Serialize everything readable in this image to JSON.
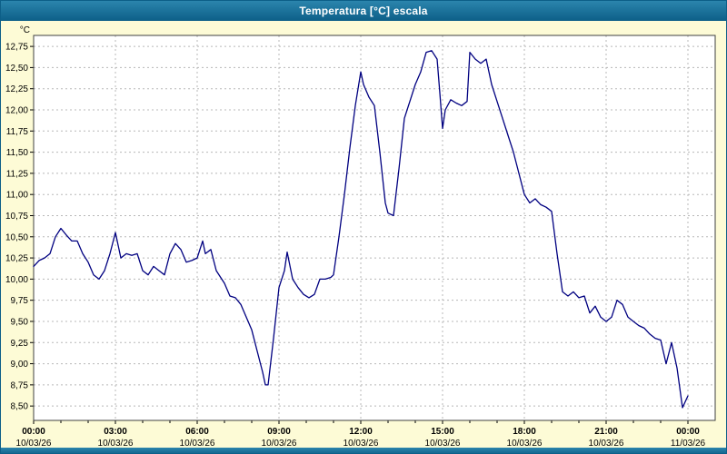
{
  "window": {
    "title": "Temperatura [°C] escala"
  },
  "colors": {
    "titlebar_bg_top": "#2b85ad",
    "titlebar_bg_bottom": "#0d5f88",
    "page_bg": "#fdfbd6",
    "plot_bg": "#ffffff",
    "grid": "#b8b8b8",
    "plot_border": "#404040",
    "line": "#000080",
    "axis_text": "#000000"
  },
  "chart_data": {
    "type": "line",
    "title": "Temperatura [°C] escala",
    "ylabel": "°C",
    "xlabel": "",
    "grid": true,
    "legend": "none",
    "ylim": [
      8.33,
      12.88
    ],
    "xlim": [
      0,
      25
    ],
    "y_ticks": [
      {
        "value": 12.75,
        "label": "12,75"
      },
      {
        "value": 12.5,
        "label": "12,50"
      },
      {
        "value": 12.25,
        "label": "12,25"
      },
      {
        "value": 12.0,
        "label": "12,00"
      },
      {
        "value": 11.75,
        "label": "11,75"
      },
      {
        "value": 11.5,
        "label": "11,50"
      },
      {
        "value": 11.25,
        "label": "11,25"
      },
      {
        "value": 11.0,
        "label": "11,00"
      },
      {
        "value": 10.75,
        "label": "10,75"
      },
      {
        "value": 10.5,
        "label": "10,50"
      },
      {
        "value": 10.25,
        "label": "10,25"
      },
      {
        "value": 10.0,
        "label": "10,00"
      },
      {
        "value": 9.75,
        "label": "9,75"
      },
      {
        "value": 9.5,
        "label": "9,50"
      },
      {
        "value": 9.25,
        "label": "9,25"
      },
      {
        "value": 9.0,
        "label": "9,00"
      },
      {
        "value": 8.75,
        "label": "8,75"
      },
      {
        "value": 8.5,
        "label": "8,50"
      }
    ],
    "x_ticks": [
      {
        "hour": 0,
        "time": "00:00",
        "date": "10/03/26"
      },
      {
        "hour": 3,
        "time": "03:00",
        "date": "10/03/26"
      },
      {
        "hour": 6,
        "time": "06:00",
        "date": "10/03/26"
      },
      {
        "hour": 9,
        "time": "09:00",
        "date": "10/03/26"
      },
      {
        "hour": 12,
        "time": "12:00",
        "date": "10/03/26"
      },
      {
        "hour": 15,
        "time": "15:00",
        "date": "10/03/26"
      },
      {
        "hour": 18,
        "time": "18:00",
        "date": "10/03/26"
      },
      {
        "hour": 21,
        "time": "21:00",
        "date": "10/03/26"
      },
      {
        "hour": 24,
        "time": "00:00",
        "date": "11/03/26"
      }
    ],
    "series": [
      {
        "name": "Temperatura",
        "color": "#000080",
        "points": [
          [
            0.0,
            10.15
          ],
          [
            0.2,
            10.22
          ],
          [
            0.4,
            10.25
          ],
          [
            0.6,
            10.3
          ],
          [
            0.8,
            10.5
          ],
          [
            1.0,
            10.6
          ],
          [
            1.2,
            10.52
          ],
          [
            1.4,
            10.45
          ],
          [
            1.6,
            10.45
          ],
          [
            1.8,
            10.3
          ],
          [
            2.0,
            10.2
          ],
          [
            2.2,
            10.05
          ],
          [
            2.4,
            10.0
          ],
          [
            2.6,
            10.1
          ],
          [
            2.8,
            10.3
          ],
          [
            3.0,
            10.55
          ],
          [
            3.1,
            10.4
          ],
          [
            3.2,
            10.25
          ],
          [
            3.4,
            10.3
          ],
          [
            3.6,
            10.28
          ],
          [
            3.8,
            10.3
          ],
          [
            4.0,
            10.1
          ],
          [
            4.2,
            10.05
          ],
          [
            4.4,
            10.15
          ],
          [
            4.6,
            10.1
          ],
          [
            4.8,
            10.05
          ],
          [
            5.0,
            10.3
          ],
          [
            5.2,
            10.42
          ],
          [
            5.4,
            10.35
          ],
          [
            5.6,
            10.2
          ],
          [
            5.8,
            10.22
          ],
          [
            6.0,
            10.25
          ],
          [
            6.2,
            10.45
          ],
          [
            6.3,
            10.3
          ],
          [
            6.5,
            10.35
          ],
          [
            6.7,
            10.1
          ],
          [
            7.0,
            9.95
          ],
          [
            7.2,
            9.8
          ],
          [
            7.4,
            9.78
          ],
          [
            7.6,
            9.7
          ],
          [
            7.8,
            9.55
          ],
          [
            8.0,
            9.4
          ],
          [
            8.2,
            9.15
          ],
          [
            8.4,
            8.9
          ],
          [
            8.5,
            8.75
          ],
          [
            8.6,
            8.75
          ],
          [
            8.8,
            9.3
          ],
          [
            9.0,
            9.9
          ],
          [
            9.2,
            10.1
          ],
          [
            9.3,
            10.32
          ],
          [
            9.5,
            10.0
          ],
          [
            9.7,
            9.9
          ],
          [
            9.9,
            9.82
          ],
          [
            10.1,
            9.78
          ],
          [
            10.3,
            9.82
          ],
          [
            10.5,
            10.0
          ],
          [
            10.7,
            10.0
          ],
          [
            10.9,
            10.02
          ],
          [
            11.0,
            10.05
          ],
          [
            11.2,
            10.5
          ],
          [
            11.4,
            11.0
          ],
          [
            11.6,
            11.55
          ],
          [
            11.8,
            12.05
          ],
          [
            12.0,
            12.45
          ],
          [
            12.1,
            12.3
          ],
          [
            12.3,
            12.15
          ],
          [
            12.5,
            12.05
          ],
          [
            12.7,
            11.5
          ],
          [
            12.9,
            10.9
          ],
          [
            13.0,
            10.78
          ],
          [
            13.2,
            10.75
          ],
          [
            13.4,
            11.3
          ],
          [
            13.6,
            11.9
          ],
          [
            13.8,
            12.1
          ],
          [
            14.0,
            12.3
          ],
          [
            14.2,
            12.45
          ],
          [
            14.4,
            12.68
          ],
          [
            14.6,
            12.7
          ],
          [
            14.8,
            12.6
          ],
          [
            14.9,
            12.2
          ],
          [
            15.0,
            11.78
          ],
          [
            15.1,
            12.0
          ],
          [
            15.3,
            12.12
          ],
          [
            15.5,
            12.08
          ],
          [
            15.7,
            12.05
          ],
          [
            15.9,
            12.1
          ],
          [
            16.0,
            12.68
          ],
          [
            16.2,
            12.6
          ],
          [
            16.4,
            12.55
          ],
          [
            16.6,
            12.6
          ],
          [
            16.8,
            12.3
          ],
          [
            17.0,
            12.1
          ],
          [
            17.2,
            11.9
          ],
          [
            17.4,
            11.7
          ],
          [
            17.6,
            11.5
          ],
          [
            17.8,
            11.25
          ],
          [
            18.0,
            11.0
          ],
          [
            18.2,
            10.9
          ],
          [
            18.4,
            10.95
          ],
          [
            18.6,
            10.88
          ],
          [
            18.8,
            10.85
          ],
          [
            19.0,
            10.8
          ],
          [
            19.2,
            10.3
          ],
          [
            19.4,
            9.85
          ],
          [
            19.6,
            9.8
          ],
          [
            19.8,
            9.85
          ],
          [
            20.0,
            9.78
          ],
          [
            20.2,
            9.8
          ],
          [
            20.4,
            9.6
          ],
          [
            20.6,
            9.68
          ],
          [
            20.8,
            9.55
          ],
          [
            21.0,
            9.5
          ],
          [
            21.2,
            9.55
          ],
          [
            21.4,
            9.75
          ],
          [
            21.6,
            9.7
          ],
          [
            21.8,
            9.55
          ],
          [
            22.0,
            9.5
          ],
          [
            22.2,
            9.45
          ],
          [
            22.4,
            9.42
          ],
          [
            22.6,
            9.35
          ],
          [
            22.8,
            9.3
          ],
          [
            23.0,
            9.28
          ],
          [
            23.2,
            9.0
          ],
          [
            23.4,
            9.25
          ],
          [
            23.6,
            8.95
          ],
          [
            23.8,
            8.48
          ],
          [
            24.0,
            8.62
          ]
        ]
      }
    ]
  }
}
